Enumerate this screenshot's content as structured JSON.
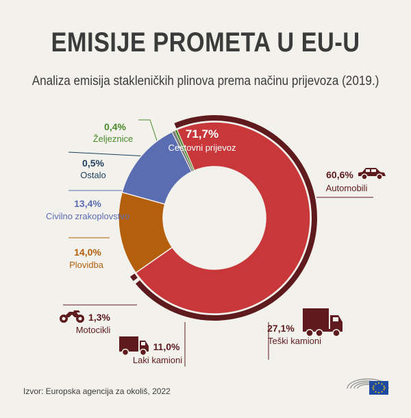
{
  "header": {
    "title": "EMISIJE PROMETA U EU-U",
    "subtitle": "Analiza emisija stakleničkih plinova prema načinu prijevoza (2019.)"
  },
  "footer": {
    "source": "Izvor: Europska agencija za okoliš, 2022"
  },
  "chart_data": {
    "type": "pie",
    "title": "EMISIJE PROMETA U EU-U",
    "subtitle": "Analiza emisija stakleničkih plinova prema načinu prijevoza (2019.)",
    "slices": [
      {
        "label": "Cestovni prijevoz",
        "value": 71.7,
        "display": "71,7%",
        "color": "#c8383a"
      },
      {
        "label": "Plovidba",
        "value": 14.0,
        "display": "14,0%",
        "color": "#b35f0c"
      },
      {
        "label": "Civilno zrakoplovstvo",
        "value": 13.4,
        "display": "13,4%",
        "color": "#5b6db2"
      },
      {
        "label": "Ostalo",
        "value": 0.5,
        "display": "0,5%",
        "color": "#7a7a7a"
      },
      {
        "label": "Željeznice",
        "value": 0.4,
        "display": "0,4%",
        "color": "#4a8a2a"
      }
    ],
    "road_breakdown": [
      {
        "label": "Automobili",
        "value": 60.6,
        "display": "60,6%",
        "icon": "car-icon"
      },
      {
        "label": "Teški kamioni",
        "value": 27.1,
        "display": "27,1%",
        "icon": "truck-icon"
      },
      {
        "label": "Laki kamioni",
        "value": 11.0,
        "display": "11,0%",
        "icon": "van-icon"
      },
      {
        "label": "Motocikli",
        "value": 1.3,
        "display": "1,3%",
        "icon": "motorcycle-icon"
      }
    ],
    "colors": {
      "text": "#3b3b3b",
      "breakdown": "#5e1a1c",
      "road_label": "#ffffff"
    }
  }
}
